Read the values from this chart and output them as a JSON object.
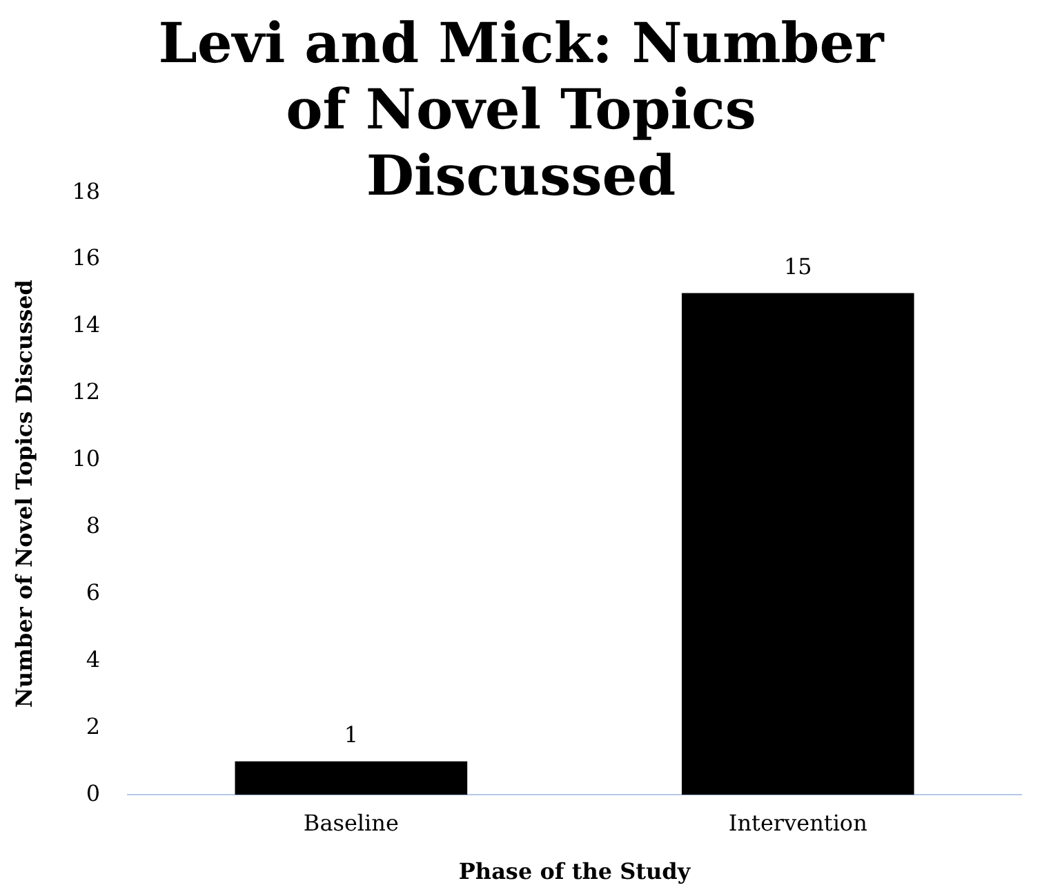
{
  "chart_data": {
    "type": "bar",
    "title": "Levi and Mick: Number of Novel Topics Discussed",
    "xlabel": "Phase of the Study",
    "ylabel": "Number of Novel Topics Discussed",
    "categories": [
      "Baseline",
      "Intervention"
    ],
    "values": [
      1,
      15
    ],
    "color": "#000000",
    "ylim": [
      0,
      18
    ],
    "yticks": [
      0,
      2,
      4,
      6,
      8,
      10,
      12,
      14,
      16,
      18
    ],
    "grid": false,
    "legend": false,
    "data_labels": true
  }
}
